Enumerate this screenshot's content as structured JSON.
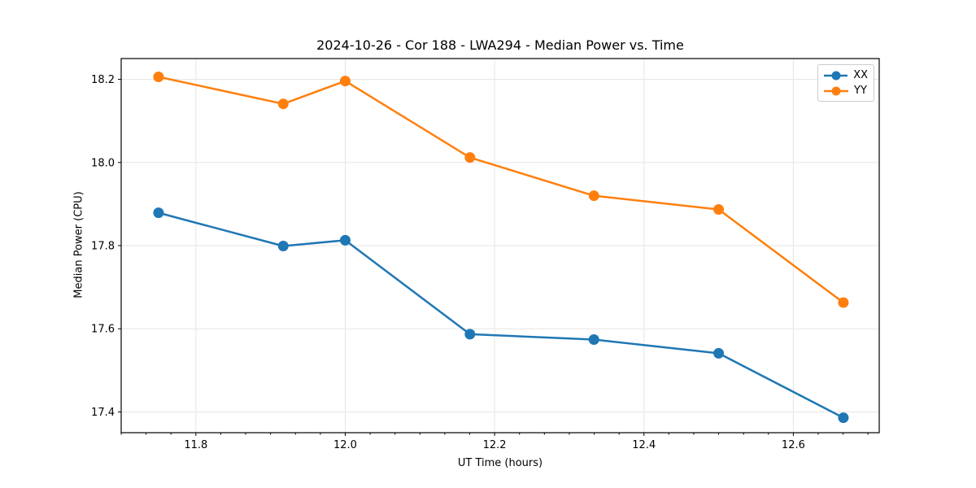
{
  "chart_data": {
    "type": "line",
    "title": "2024-10-26 - Cor 188 - LWA294 - Median Power vs. Time",
    "xlabel": "UT Time (hours)",
    "ylabel": "Median Power (CPU)",
    "xlim": [
      11.7,
      12.715
    ],
    "ylim": [
      17.35,
      18.25
    ],
    "x_ticks": [
      11.8,
      12.0,
      12.2,
      12.4,
      12.6
    ],
    "x_tick_labels": [
      "11.8",
      "12.0",
      "12.2",
      "12.4",
      "12.6"
    ],
    "y_ticks": [
      17.4,
      17.6,
      17.8,
      18.0,
      18.2
    ],
    "y_tick_labels": [
      "17.4",
      "17.6",
      "17.8",
      "18.0",
      "18.2"
    ],
    "x_minor_tick_step": 0.033333,
    "grid": true,
    "legend_position": "upper right",
    "x": [
      11.75,
      11.917,
      12.0,
      12.167,
      12.333,
      12.5,
      12.667
    ],
    "series": [
      {
        "name": "XX",
        "color": "#1f77b4",
        "values": [
          17.879,
          17.799,
          17.813,
          17.587,
          17.574,
          17.541,
          17.386
        ]
      },
      {
        "name": "YY",
        "color": "#ff7f0e",
        "values": [
          18.206,
          18.141,
          18.196,
          18.012,
          17.92,
          17.887,
          17.663
        ]
      }
    ],
    "colors": {
      "background": "#ffffff",
      "grid": "#e6e6e6",
      "spine": "#000000",
      "text": "#000000"
    }
  }
}
